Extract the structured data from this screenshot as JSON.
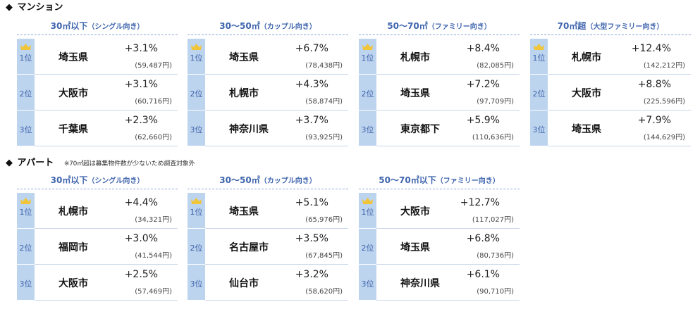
{
  "mansion": {
    "title": "マンション",
    "diamond": "◆",
    "panels": [
      {
        "header": "30㎡以下",
        "sub": "（シングル向き）",
        "rows": [
          {
            "rank": "1位",
            "city": "埼玉県",
            "pct": "+3.1%",
            "price": "(59,487円)"
          },
          {
            "rank": "2位",
            "city": "大阪市",
            "pct": "+3.1%",
            "price": "(60,716円)"
          },
          {
            "rank": "3位",
            "city": "千葉県",
            "pct": "+2.3%",
            "price": "(62,660円)"
          }
        ]
      },
      {
        "header": "30～50㎡",
        "sub": "（カップル向き）",
        "rows": [
          {
            "rank": "1位",
            "city": "埼玉県",
            "pct": "+6.7%",
            "price": "(78,438円)"
          },
          {
            "rank": "2位",
            "city": "札幌市",
            "pct": "+4.3%",
            "price": "(58,874円)"
          },
          {
            "rank": "3位",
            "city": "神奈川県",
            "pct": "+3.7%",
            "price": "(93,925円)"
          }
        ]
      },
      {
        "header": "50～70㎡",
        "sub": "（ファミリー向き）",
        "rows": [
          {
            "rank": "1位",
            "city": "札幌市",
            "pct": "+8.4%",
            "price": "(82,085円)"
          },
          {
            "rank": "2位",
            "city": "埼玉県",
            "pct": "+7.2%",
            "price": "(97,709円)"
          },
          {
            "rank": "3位",
            "city": "東京都下",
            "pct": "+5.9%",
            "price": "(110,636円)"
          }
        ]
      },
      {
        "header": "70㎡超",
        "sub": "（大型ファミリー向き）",
        "rows": [
          {
            "rank": "1位",
            "city": "札幌市",
            "pct": "+12.4%",
            "price": "(142,212円)"
          },
          {
            "rank": "2位",
            "city": "大阪市",
            "pct": "+8.8%",
            "price": "(225,596円)"
          },
          {
            "rank": "3位",
            "city": "埼玉県",
            "pct": "+7.9%",
            "price": "(144,629円)"
          }
        ]
      }
    ]
  },
  "apartment": {
    "title": "アパート",
    "diamond": "◆",
    "note": "※70㎡超は募集物件数が少ないため調査対象外",
    "panels": [
      {
        "header": "30㎡以下",
        "sub": "（シングル向き）",
        "rows": [
          {
            "rank": "1位",
            "city": "札幌市",
            "pct": "+4.4%",
            "price": "(34,321円)"
          },
          {
            "rank": "2位",
            "city": "福岡市",
            "pct": "+3.0%",
            "price": "(41,544円)"
          },
          {
            "rank": "3位",
            "city": "大阪市",
            "pct": "+2.5%",
            "price": "(57,469円)"
          }
        ]
      },
      {
        "header": "30～50㎡",
        "sub": "（カップル向き）",
        "rows": [
          {
            "rank": "1位",
            "city": "埼玉県",
            "pct": "+5.1%",
            "price": "(65,976円)"
          },
          {
            "rank": "2位",
            "city": "名古屋市",
            "pct": "+3.5%",
            "price": "(67,845円)"
          },
          {
            "rank": "3位",
            "city": "仙台市",
            "pct": "+3.2%",
            "price": "(58,620円)"
          }
        ]
      },
      {
        "header": "50～70㎡以下",
        "sub": "（ファミリー向き）",
        "rows": [
          {
            "rank": "1位",
            "city": "大阪市",
            "pct": "+12.7%",
            "price": "(117,027円)"
          },
          {
            "rank": "2位",
            "city": "埼玉県",
            "pct": "+6.8%",
            "price": "(80,736円)"
          },
          {
            "rank": "3位",
            "city": "神奈川県",
            "pct": "+6.1%",
            "price": "(90,710円)"
          }
        ]
      }
    ]
  },
  "colors": {
    "accent": "#3e64ad",
    "rank_bg": "#bdd4ee",
    "crown": "#f0c53a"
  },
  "icons": {
    "first_place": "crown-icon"
  }
}
